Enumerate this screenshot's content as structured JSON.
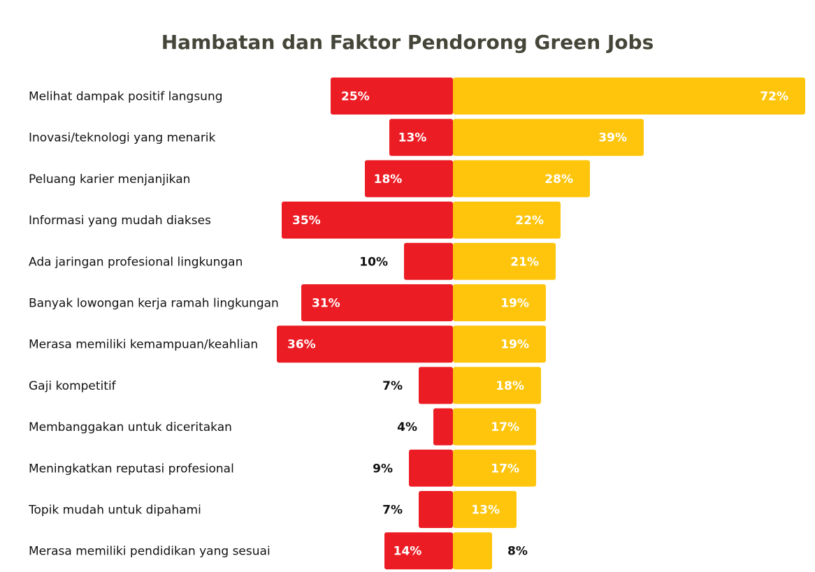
{
  "chart_data": {
    "type": "bar",
    "orientation": "horizontal-diverging",
    "title": "Hambatan dan Faktor Pendorong Green Jobs",
    "categories": [
      "Melihat dampak positif langsung",
      "Inovasi/teknologi yang menarik",
      "Peluang karier menjanjikan",
      "Informasi yang mudah diakses",
      "Ada jaringan profesional lingkungan",
      "Banyak lowongan kerja ramah lingkungan",
      "Merasa memiliki kemampuan/keahlian",
      "Gaji kompetitif",
      "Membanggakan untuk diceritakan",
      "Meningkatkan reputasi profesional",
      "Topik mudah untuk dipahami",
      "Merasa memiliki pendidikan yang sesuai"
    ],
    "series": [
      {
        "values": [
          25,
          13,
          18,
          35,
          10,
          31,
          36,
          7,
          4,
          9,
          7,
          14
        ],
        "labels": [
          "25%",
          "13%",
          "18%",
          "35%",
          "10%",
          "31%",
          "36%",
          "7%",
          "4%",
          "9%",
          "7%",
          "14%"
        ],
        "direction": "left",
        "color": "#ec1c24"
      },
      {
        "values": [
          72,
          39,
          28,
          22,
          21,
          19,
          19,
          18,
          17,
          17,
          13,
          8
        ],
        "labels": [
          "72%",
          "39%",
          "28%",
          "22%",
          "21%",
          "19%",
          "19%",
          "18%",
          "17%",
          "17%",
          "13%",
          "8%"
        ],
        "direction": "right",
        "color": "#fec50c"
      }
    ],
    "unit": "%",
    "grid": false,
    "legend": "none"
  }
}
